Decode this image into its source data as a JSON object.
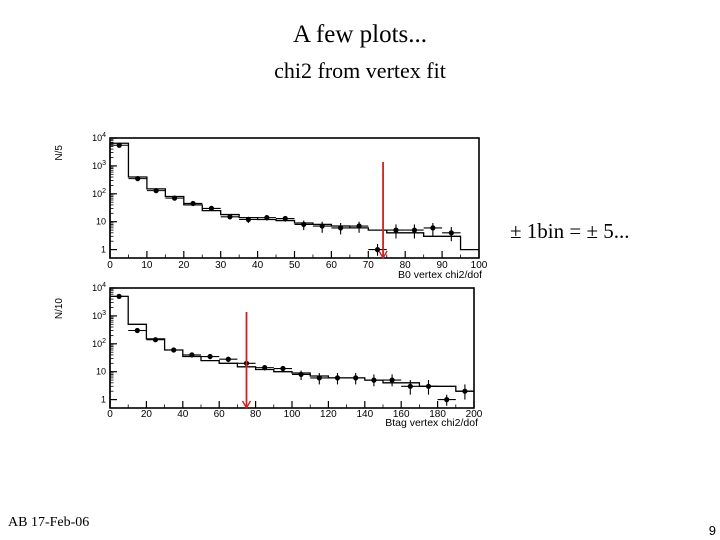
{
  "slide": {
    "title": "A few plots...",
    "subtitle": "chi2 from vertex fit",
    "note": "± 1bin = ± 5...",
    "footer_left": "AB 17-Feb-06",
    "page_number": "9",
    "cut_line_color": "#cc2222"
  },
  "chart_data": [
    {
      "type": "scatter",
      "xlabel": "B0 vertex chi2/dof",
      "ylabel": "N/5",
      "xlim": [
        0,
        100
      ],
      "ylim": [
        0.5,
        10000
      ],
      "yscale": "log",
      "x_ticks": [
        "0",
        "10",
        "20",
        "30",
        "40",
        "50",
        "60",
        "70",
        "80",
        "90",
        "100"
      ],
      "y_ticks": [
        "10 4",
        "10 3",
        "10 2",
        "10",
        "1"
      ],
      "cut_value": 74,
      "series": [
        {
          "style": "histogram",
          "bin_edges": [
            0,
            5,
            10,
            15,
            20,
            25,
            30,
            35,
            40,
            45,
            50,
            55,
            60,
            65,
            70,
            75,
            80,
            85,
            90,
            95,
            100
          ],
          "values": [
            6500,
            400,
            150,
            80,
            40,
            25,
            18,
            14,
            12,
            11,
            9,
            8,
            7,
            6,
            5,
            4,
            4,
            3,
            3,
            1,
            1
          ]
        },
        {
          "style": "points",
          "x": [
            2.5,
            7.5,
            12.5,
            17.5,
            22.5,
            27.5,
            32.5,
            37.5,
            42.5,
            47.5,
            52.5,
            57.5,
            62.5,
            67.5,
            72.5,
            77.5,
            82.5,
            87.5,
            92.5
          ],
          "y": [
            5500,
            350,
            130,
            70,
            45,
            30,
            15,
            12,
            14,
            13,
            8,
            7,
            6,
            7,
            1,
            5,
            5,
            6,
            4
          ],
          "yerr_low": [
            5000,
            300,
            110,
            60,
            38,
            24,
            12,
            9,
            11,
            10,
            5,
            4,
            3.5,
            4,
            0.6,
            2.5,
            2.5,
            3,
            2
          ],
          "yerr_high": [
            6000,
            400,
            150,
            80,
            52,
            36,
            18,
            15,
            17,
            16,
            11,
            10,
            9,
            10,
            1.6,
            8,
            8,
            9,
            6.5
          ]
        }
      ]
    },
    {
      "type": "scatter",
      "xlabel": "Btag vertex chi2/dof",
      "ylabel": "N/10",
      "xlim": [
        0,
        200
      ],
      "ylim": [
        0.5,
        10000
      ],
      "yscale": "log",
      "x_ticks": [
        "0",
        "20",
        "40",
        "60",
        "80",
        "100",
        "120",
        "140",
        "160",
        "180",
        "200"
      ],
      "y_ticks": [
        "10 4",
        "10 3",
        "10 2",
        "10",
        "1"
      ],
      "cut_value": 75,
      "series": [
        {
          "style": "histogram",
          "bin_edges": [
            0,
            10,
            20,
            30,
            40,
            50,
            60,
            70,
            80,
            90,
            100,
            110,
            120,
            130,
            140,
            150,
            160,
            170,
            180,
            190,
            200
          ],
          "values": [
            5000,
            500,
            150,
            60,
            35,
            25,
            20,
            15,
            12,
            10,
            9,
            7,
            6,
            6,
            5,
            4,
            4,
            3,
            3,
            2,
            2
          ]
        },
        {
          "style": "points",
          "x": [
            5,
            15,
            25,
            35,
            45,
            55,
            65,
            75,
            85,
            95,
            105,
            115,
            125,
            135,
            145,
            155,
            165,
            175,
            185,
            195
          ],
          "y": [
            5000,
            300,
            140,
            60,
            40,
            35,
            28,
            20,
            14,
            13,
            8,
            6,
            6,
            6,
            5,
            5,
            3,
            3,
            1,
            2
          ],
          "yerr_low": [
            4500,
            260,
            120,
            50,
            33,
            28,
            22,
            16,
            11,
            10,
            5,
            3.5,
            3.5,
            3.5,
            3,
            3,
            1.5,
            1.5,
            0.6,
            1
          ],
          "yerr_high": [
            5500,
            340,
            160,
            70,
            47,
            42,
            34,
            24,
            17,
            16,
            11,
            9,
            9,
            9,
            8,
            8,
            5,
            5,
            1.5,
            3.5
          ]
        }
      ]
    }
  ]
}
